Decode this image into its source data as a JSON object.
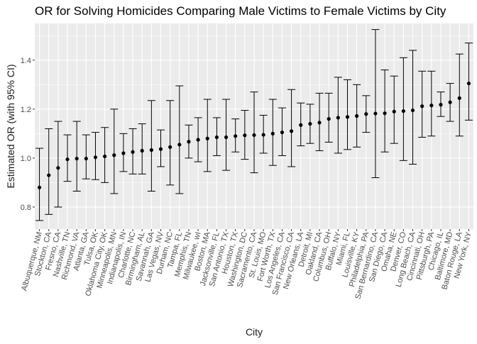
{
  "chart_data": {
    "type": "scatter",
    "title": "OR for Solving Homicides Comparing Male Victims to Female Victims by City",
    "xlabel": "City",
    "ylabel": "Estimated OR (with 95% CI)",
    "ylim": [
      0.71,
      1.55
    ],
    "yticks": [
      0.8,
      1.0,
      1.2,
      1.4
    ],
    "ytick_labels": [
      "0.8",
      "1.0",
      "1.2",
      "1.4"
    ],
    "grid": true,
    "background": "#ebebeb",
    "point_color": "#000000",
    "categories": [
      "Albuquerque, NM",
      "Stockton, CA",
      "Fresno, CA",
      "Nashville, TN",
      "Richmond, VA",
      "Atlanta, GA",
      "Tulsa, OK",
      "Oklahoma City, OK",
      "Minneapolis, MN",
      "Indianapolis, IN",
      "Charlotte, NC",
      "Birmingham, AL",
      "Savannah, GA",
      "Las Vegas, NV",
      "Durham, NC",
      "Tampa, FL",
      "Memphis, TN",
      "Milwaukee, wI",
      "Boston, MA",
      "Jacksonville, FL",
      "San Antonio, TX",
      "Houston, TX",
      "Washington, DC",
      "Sacramento, CA",
      "St. Louis, MO",
      "Fort Worth, TX",
      "Los Angeles, CA",
      "San Francisco, CA",
      "New Orleans, LA",
      "Detroit, MI",
      "Oakland, CA",
      "Columbus, OH",
      "Buffalo, NY",
      "Miami, FL",
      "Louisville, KY",
      "Philadelphia, PA",
      "San Bernardino, CA",
      "San Diego, CA",
      "Omaha, NE",
      "Denver, CO",
      "Long Beach, CA",
      "Cincinnati, OH",
      "Pittsburgh, PA",
      "Chicago, IL",
      "Baltimore, MD",
      "Baton Rouge, LA",
      "New York, NY"
    ],
    "estimate": [
      0.88,
      0.93,
      0.96,
      0.995,
      0.998,
      0.998,
      1.003,
      1.007,
      1.012,
      1.02,
      1.025,
      1.03,
      1.033,
      1.037,
      1.045,
      1.055,
      1.067,
      1.075,
      1.08,
      1.085,
      1.085,
      1.09,
      1.093,
      1.094,
      1.095,
      1.1,
      1.105,
      1.11,
      1.135,
      1.14,
      1.145,
      1.16,
      1.165,
      1.168,
      1.172,
      1.18,
      1.182,
      1.183,
      1.19,
      1.192,
      1.195,
      1.212,
      1.215,
      1.218,
      1.228,
      1.245,
      1.305
    ],
    "ci_lower": [
      0.745,
      0.77,
      0.8,
      0.905,
      0.865,
      0.915,
      0.912,
      0.9,
      0.855,
      0.945,
      0.935,
      0.935,
      0.865,
      0.965,
      0.89,
      0.855,
      1.0,
      0.985,
      0.945,
      1.01,
      0.95,
      1.025,
      0.995,
      0.94,
      1.02,
      0.97,
      1.01,
      0.965,
      1.05,
      1.06,
      1.03,
      1.065,
      1.02,
      1.035,
      1.045,
      1.105,
      0.92,
      1.025,
      1.06,
      0.99,
      0.975,
      1.085,
      1.09,
      1.17,
      1.15,
      1.09,
      1.155
    ],
    "ci_upper": [
      1.04,
      1.12,
      1.15,
      1.095,
      1.15,
      1.095,
      1.105,
      1.125,
      1.2,
      1.1,
      1.12,
      1.14,
      1.235,
      1.115,
      1.235,
      1.295,
      1.135,
      1.165,
      1.24,
      1.165,
      1.24,
      1.16,
      1.195,
      1.27,
      1.175,
      1.24,
      1.205,
      1.28,
      1.225,
      1.22,
      1.265,
      1.265,
      1.33,
      1.32,
      1.3,
      1.255,
      1.525,
      1.36,
      1.335,
      1.41,
      1.44,
      1.355,
      1.355,
      1.27,
      1.305,
      1.425,
      1.47
    ]
  }
}
